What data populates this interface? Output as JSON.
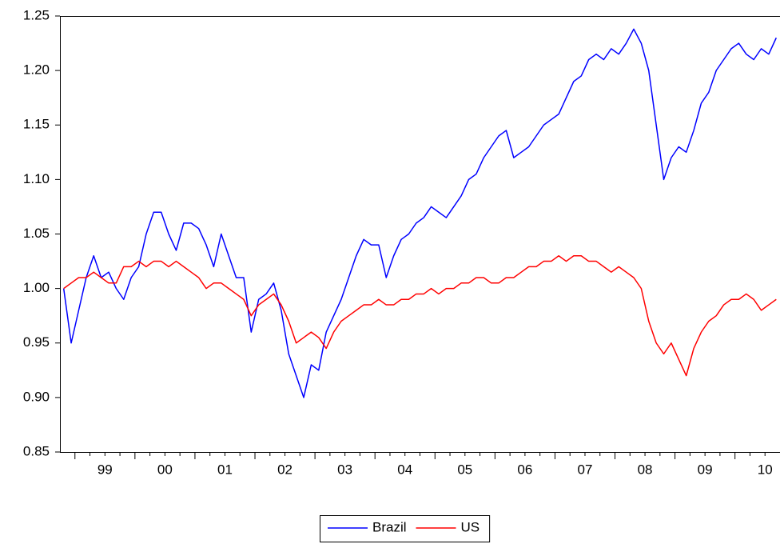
{
  "chart_data": {
    "type": "line",
    "categories": [
      null,
      null,
      null,
      null,
      null,
      null,
      "99",
      null,
      null,
      null,
      null,
      null,
      null,
      null,
      "00",
      null,
      null,
      null,
      null,
      null,
      null,
      null,
      "01",
      null,
      null,
      null,
      null,
      null,
      null,
      null,
      "02",
      null,
      null,
      null,
      null,
      null,
      null,
      null,
      "03",
      null,
      null,
      null,
      null,
      null,
      null,
      null,
      "04",
      null,
      null,
      null,
      null,
      null,
      null,
      null,
      "05",
      null,
      null,
      null,
      null,
      null,
      null,
      null,
      "06",
      null,
      null,
      null,
      null,
      null,
      null,
      null,
      "07",
      null,
      null,
      null,
      null,
      null,
      null,
      null,
      "08",
      null,
      null,
      null,
      null,
      null,
      null,
      null,
      "09",
      null,
      null,
      null,
      null,
      null,
      null,
      null,
      "10",
      null
    ],
    "series": [
      {
        "name": "Brazil",
        "color": "#0000ff",
        "values": [
          1.0,
          0.95,
          0.98,
          1.01,
          1.03,
          1.01,
          1.015,
          1.0,
          0.99,
          1.01,
          1.02,
          1.05,
          1.07,
          1.07,
          1.05,
          1.035,
          1.06,
          1.06,
          1.055,
          1.04,
          1.02,
          1.05,
          1.03,
          1.01,
          1.01,
          0.96,
          0.99,
          0.995,
          1.005,
          0.98,
          0.94,
          0.92,
          0.9,
          0.93,
          0.925,
          0.96,
          0.975,
          0.99,
          1.01,
          1.03,
          1.045,
          1.04,
          1.04,
          1.01,
          1.03,
          1.045,
          1.05,
          1.06,
          1.065,
          1.075,
          1.07,
          1.065,
          1.075,
          1.085,
          1.1,
          1.105,
          1.12,
          1.13,
          1.14,
          1.145,
          1.12,
          1.125,
          1.13,
          1.14,
          1.15,
          1.155,
          1.16,
          1.175,
          1.19,
          1.195,
          1.21,
          1.215,
          1.21,
          1.22,
          1.215,
          1.225,
          1.238,
          1.225,
          1.2,
          1.15,
          1.1,
          1.12,
          1.13,
          1.125,
          1.145,
          1.17,
          1.18,
          1.2,
          1.21,
          1.22,
          1.225,
          1.215,
          1.21,
          1.22,
          1.215,
          1.23
        ]
      },
      {
        "name": "US",
        "color": "#ff0000",
        "values": [
          1.0,
          1.005,
          1.01,
          1.01,
          1.015,
          1.01,
          1.005,
          1.005,
          1.02,
          1.02,
          1.025,
          1.02,
          1.025,
          1.025,
          1.02,
          1.025,
          1.02,
          1.015,
          1.01,
          1.0,
          1.005,
          1.005,
          1.0,
          0.995,
          0.99,
          0.975,
          0.985,
          0.99,
          0.995,
          0.985,
          0.97,
          0.95,
          0.955,
          0.96,
          0.955,
          0.945,
          0.96,
          0.97,
          0.975,
          0.98,
          0.985,
          0.985,
          0.99,
          0.985,
          0.985,
          0.99,
          0.99,
          0.995,
          0.995,
          1.0,
          0.995,
          1.0,
          1.0,
          1.005,
          1.005,
          1.01,
          1.01,
          1.005,
          1.005,
          1.01,
          1.01,
          1.015,
          1.02,
          1.02,
          1.025,
          1.025,
          1.03,
          1.025,
          1.03,
          1.03,
          1.025,
          1.025,
          1.02,
          1.015,
          1.02,
          1.015,
          1.01,
          1.0,
          0.97,
          0.95,
          0.94,
          0.95,
          0.935,
          0.92,
          0.945,
          0.96,
          0.97,
          0.975,
          0.985,
          0.99,
          0.99,
          0.995,
          0.99,
          0.98,
          0.985,
          0.99
        ]
      }
    ],
    "ylim": [
      0.85,
      1.25
    ],
    "yticks": [
      0.85,
      {
        "value": 0.9,
        "label": "0.90"
      },
      0.95,
      {
        "value": 1.0,
        "label": "1.00"
      },
      1.05,
      {
        "value": 1.1,
        "label": "1.10"
      },
      1.15,
      {
        "value": 1.2,
        "label": "1.20"
      },
      1.25
    ],
    "legend": "bottom"
  }
}
